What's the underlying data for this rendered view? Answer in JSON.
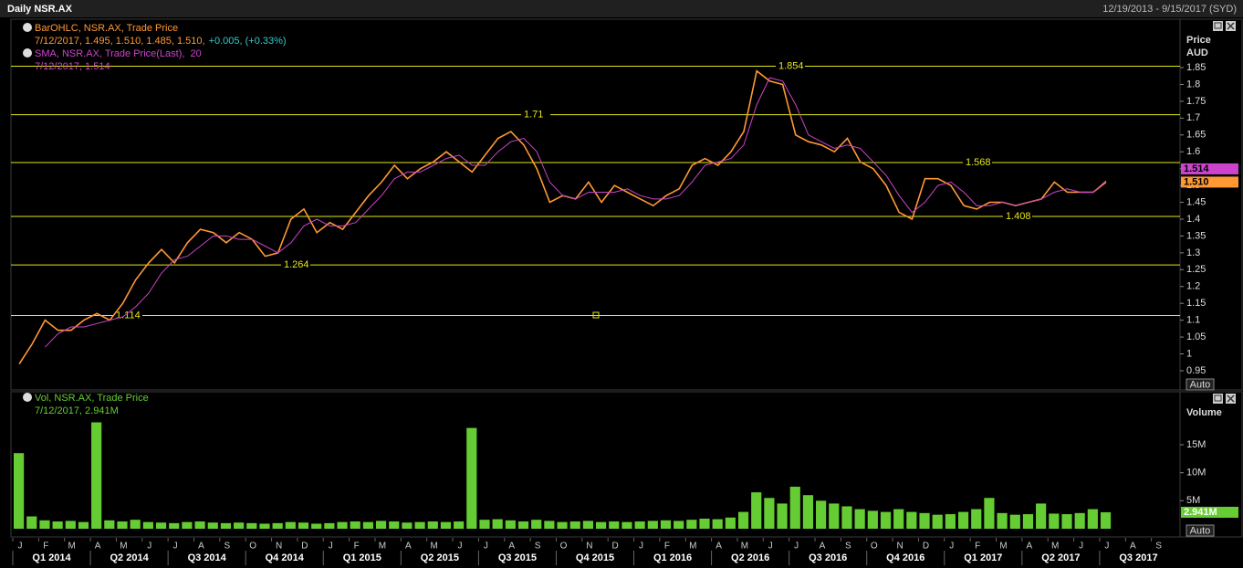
{
  "header": {
    "title": "Daily NSR.AX",
    "date_range": "12/19/2013 - 9/15/2017 (SYD)"
  },
  "chart_data": [
    {
      "type": "line",
      "axis_title": "Price",
      "axis_unit": "AUD",
      "scale_button": "Auto",
      "ylim": [
        0.893,
        1.991
      ],
      "yticks": [
        0.95,
        1,
        1.05,
        1.1,
        1.15,
        1.2,
        1.25,
        1.3,
        1.35,
        1.4,
        1.45,
        1.5,
        1.55,
        1.6,
        1.65,
        1.7,
        1.75,
        1.8,
        1.85
      ],
      "levels": [
        1.854,
        1.71,
        1.568,
        1.408,
        1.264,
        1.114
      ],
      "level_color": "#e6e619",
      "series": [
        {
          "name": "BarOHLC, NSR.AX, Trade Price",
          "color": "#ff9933",
          "readout": "7/12/2017, 1.495, 1.510, 1.485, 1.510,",
          "change": "+0.005, (+0.33%)",
          "change_color": "#33cccc",
          "last": {
            "value": 1.51,
            "label": "1.510"
          },
          "values": [
            0.97,
            1.03,
            1.1,
            1.07,
            1.07,
            1.1,
            1.12,
            1.1,
            1.15,
            1.22,
            1.27,
            1.31,
            1.27,
            1.33,
            1.37,
            1.36,
            1.33,
            1.36,
            1.34,
            1.29,
            1.3,
            1.4,
            1.43,
            1.36,
            1.39,
            1.37,
            1.42,
            1.47,
            1.51,
            1.56,
            1.52,
            1.55,
            1.57,
            1.6,
            1.57,
            1.54,
            1.59,
            1.64,
            1.66,
            1.62,
            1.55,
            1.45,
            1.47,
            1.46,
            1.51,
            1.45,
            1.5,
            1.48,
            1.46,
            1.44,
            1.47,
            1.49,
            1.56,
            1.58,
            1.56,
            1.6,
            1.66,
            1.84,
            1.81,
            1.8,
            1.65,
            1.63,
            1.62,
            1.6,
            1.64,
            1.57,
            1.55,
            1.5,
            1.42,
            1.4,
            1.52,
            1.52,
            1.5,
            1.44,
            1.43,
            1.45,
            1.45,
            1.44,
            1.45,
            1.46,
            1.51,
            1.48,
            1.48,
            1.48,
            1.51,
            null,
            null,
            null,
            null,
            null
          ]
        },
        {
          "name": "SMA, NSR.AX, Trade Price(Last),  20",
          "color": "#cc44cc",
          "readout": "7/12/2017, 1.514",
          "last": 1.514,
          "values": [
            null,
            null,
            1.02,
            1.06,
            1.08,
            1.08,
            1.09,
            1.1,
            1.11,
            1.14,
            1.18,
            1.24,
            1.28,
            1.29,
            1.32,
            1.35,
            1.35,
            1.34,
            1.34,
            1.32,
            1.3,
            1.33,
            1.38,
            1.4,
            1.38,
            1.38,
            1.39,
            1.43,
            1.47,
            1.52,
            1.54,
            1.54,
            1.56,
            1.58,
            1.59,
            1.56,
            1.56,
            1.6,
            1.63,
            1.64,
            1.6,
            1.51,
            1.47,
            1.46,
            1.48,
            1.48,
            1.48,
            1.49,
            1.47,
            1.46,
            1.46,
            1.47,
            1.51,
            1.56,
            1.57,
            1.58,
            1.62,
            1.74,
            1.82,
            1.81,
            1.74,
            1.65,
            1.63,
            1.61,
            1.62,
            1.61,
            1.57,
            1.53,
            1.47,
            1.42,
            1.45,
            1.5,
            1.51,
            1.48,
            1.44,
            1.44,
            1.45,
            1.44,
            1.45,
            1.46,
            1.48,
            1.49,
            1.48,
            1.48,
            1.514,
            null,
            null,
            null,
            null,
            null
          ]
        }
      ]
    },
    {
      "type": "bar",
      "axis_title": "Volume",
      "scale_button": "Auto",
      "ylim": [
        0,
        24300000
      ],
      "yticks": [
        {
          "value": 5000000,
          "label": "5M"
        },
        {
          "value": 10000000,
          "label": "10M"
        },
        {
          "value": 15000000,
          "label": "15M"
        }
      ],
      "categories": [
        "J",
        null,
        "F",
        null,
        "M",
        null,
        "A",
        null,
        "M",
        null,
        "J",
        null,
        "J",
        null,
        "A",
        null,
        "S",
        null,
        "O",
        null,
        "N",
        null,
        "D",
        null,
        "J",
        null,
        "F",
        null,
        "M",
        null,
        "A",
        null,
        "M",
        null,
        "J",
        null,
        "J",
        null,
        "A",
        null,
        "S",
        null,
        "O",
        null,
        "N",
        null,
        "D",
        null,
        "J",
        null,
        "F",
        null,
        "M",
        null,
        "A",
        null,
        "M",
        null,
        "J",
        null,
        "J",
        null,
        "A",
        null,
        "S",
        null,
        "O",
        null,
        "N",
        null,
        "D",
        null,
        "J",
        null,
        "F",
        null,
        "M",
        null,
        "A",
        null,
        "M",
        null,
        "J",
        null,
        "J",
        null,
        "A",
        null,
        "S",
        null
      ],
      "quarters": [
        "Q1 2014",
        "Q2 2014",
        "Q3 2014",
        "Q4 2014",
        "Q1 2015",
        "Q2 2015",
        "Q3 2015",
        "Q4 2015",
        "Q1 2016",
        "Q2 2016",
        "Q3 2016",
        "Q4 2016",
        "Q1 2017",
        "Q2 2017",
        "Q3 2017"
      ],
      "series": [
        {
          "name": "Vol, NSR.AX, Trade Price",
          "color": "#66cc33",
          "readout": "7/12/2017, 2.941M",
          "last": {
            "value": 2941000,
            "label": "2.941M"
          },
          "values": [
            13500000,
            2200000,
            1500000,
            1300000,
            1400000,
            1200000,
            19000000,
            1500000,
            1300000,
            1600000,
            1200000,
            1100000,
            1000000,
            1200000,
            1300000,
            1100000,
            1000000,
            1100000,
            1000000,
            900000,
            1000000,
            1200000,
            1100000,
            900000,
            1000000,
            1200000,
            1300000,
            1200000,
            1400000,
            1300000,
            1100000,
            1200000,
            1300000,
            1200000,
            1300000,
            18000000,
            1600000,
            1700000,
            1500000,
            1300000,
            1600000,
            1400000,
            1200000,
            1300000,
            1400000,
            1200000,
            1300000,
            1200000,
            1300000,
            1400000,
            1500000,
            1400000,
            1600000,
            1800000,
            1700000,
            2000000,
            3000000,
            6500000,
            5500000,
            4500000,
            7500000,
            6000000,
            5000000,
            4500000,
            4000000,
            3500000,
            3200000,
            3000000,
            3500000,
            3000000,
            2800000,
            2500000,
            2600000,
            3000000,
            3500000,
            5500000,
            2800000,
            2500000,
            2600000,
            4500000,
            2700000,
            2600000,
            2800000,
            3500000,
            2941000,
            null,
            null,
            null,
            null,
            null
          ]
        }
      ]
    }
  ]
}
